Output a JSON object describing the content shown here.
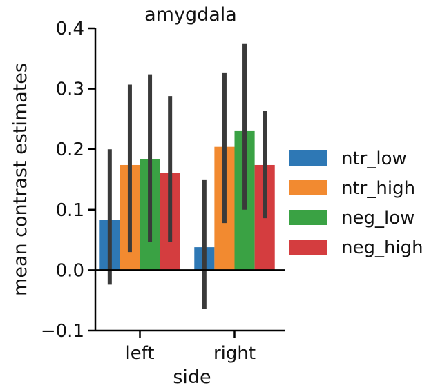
{
  "chart_data": {
    "type": "bar",
    "title": "amygdala",
    "xlabel": "side",
    "ylabel": "mean contrast estimates",
    "categories": [
      "left",
      "right"
    ],
    "ylim": [
      -0.1,
      0.4
    ],
    "yticks": [
      -0.1,
      0.0,
      0.1,
      0.2,
      0.3,
      0.4
    ],
    "ytick_labels": [
      "−0.1",
      "0.0",
      "0.1",
      "0.2",
      "0.3",
      "0.4"
    ],
    "grid": false,
    "legend_position": "right",
    "series": [
      {
        "name": "ntr_low",
        "color": "#2e78b5",
        "values": [
          0.083,
          0.038
        ],
        "err_low": [
          -0.024,
          -0.064
        ],
        "err_high": [
          0.2,
          0.149
        ]
      },
      {
        "name": "ntr_high",
        "color": "#f28a30",
        "values": [
          0.174,
          0.204
        ],
        "err_low": [
          0.03,
          0.078
        ],
        "err_high": [
          0.307,
          0.326
        ]
      },
      {
        "name": "neg_low",
        "color": "#3aa244",
        "values": [
          0.184,
          0.23
        ],
        "err_low": [
          0.047,
          0.1
        ],
        "err_high": [
          0.324,
          0.374
        ]
      },
      {
        "name": "neg_high",
        "color": "#d43d3f",
        "values": [
          0.161,
          0.174
        ],
        "err_low": [
          0.047,
          0.086
        ],
        "err_high": [
          0.288,
          0.263
        ]
      }
    ]
  }
}
